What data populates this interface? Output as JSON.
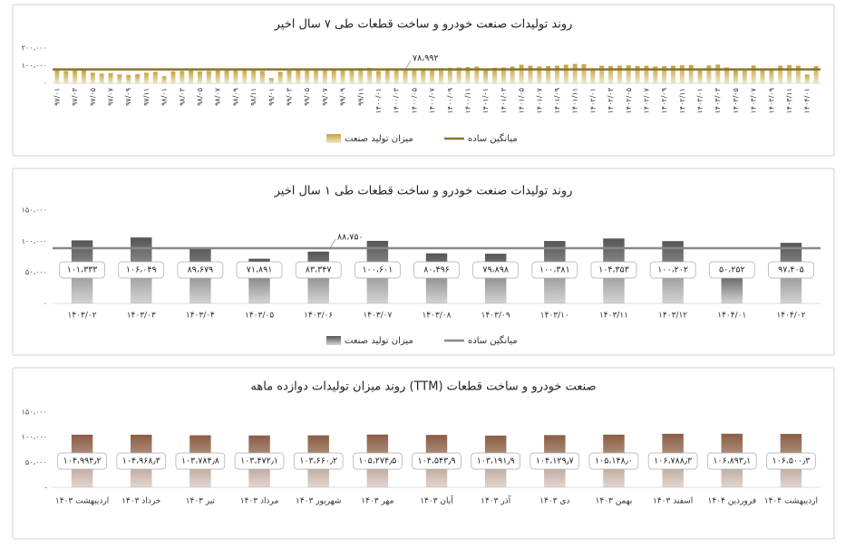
{
  "chart_data": [
    {
      "type": "bar",
      "title": "روند تولیدات صنعت خودرو و ساخت قطعات طی ۷ سال اخیر",
      "categories": [
        "۹۷/۰۱",
        null,
        "۹۷/۰۳",
        null,
        "۹۷/۰۵",
        null,
        "۹۷/۰۷",
        null,
        "۹۷/۰۹",
        null,
        "۹۷/۱۱",
        null,
        "۹۸/۰۱",
        null,
        "۹۸/۰۳",
        null,
        "۹۸/۰۵",
        null,
        "۹۸/۰۷",
        null,
        "۹۸/۰۹",
        null,
        "۹۸/۱۱",
        null,
        "۹۹/۰۱",
        null,
        "۹۹/۰۳",
        null,
        "۹۹/۰۵",
        null,
        "۹۹/۰۷",
        null,
        "۹۹/۰۹",
        null,
        "۹۹/۱۱",
        null,
        "۱۴۰۰/۰۱",
        null,
        "۱۴۰۰/۰۳",
        null,
        "۱۴۰۰/۰۵",
        null,
        "۱۴۰۰/۰۷",
        null,
        "۱۴۰۰/۰۹",
        null,
        "۱۴۰۰/۱۱",
        null,
        "۱۴۰۱/۰۱",
        null,
        "۱۴۰۱/۰۳",
        null,
        "۱۴۰۱/۰۵",
        null,
        "۱۴۰۱/۰۷",
        null,
        "۱۴۰۱/۰۹",
        null,
        "۱۴۰۱/۱۱",
        null,
        "۱۴۰۲/۰۱",
        null,
        "۱۴۰۲/۰۳",
        null,
        "۱۴۰۲/۰۵",
        null,
        "۱۴۰۲/۰۷",
        null,
        "۱۴۰۲/۰۹",
        null,
        "۱۴۰۲/۱۱",
        null,
        "۱۴۰۳/۰۱",
        null,
        "۱۴۰۳/۰۳",
        null,
        "۱۴۰۳/۰۵",
        null,
        "۱۴۰۳/۰۷",
        null,
        "۱۴۰۳/۰۹",
        null,
        "۱۴۰۳/۱۱",
        null,
        "۱۴۰۴/۰۱",
        null
      ],
      "series": [
        {
          "name": "میزان تولید صنعت",
          "color": "#c4a23a",
          "values": [
            76000,
            70000,
            72000,
            74000,
            60000,
            55000,
            58000,
            50000,
            48000,
            52000,
            60000,
            65000,
            40000,
            68000,
            70000,
            72000,
            68000,
            70000,
            72000,
            75000,
            78000,
            82000,
            80000,
            70000,
            30000,
            65000,
            72000,
            78000,
            80000,
            82000,
            85000,
            82000,
            80000,
            84000,
            86000,
            88000,
            70000,
            80000,
            84000,
            85000,
            83000,
            80000,
            82000,
            86000,
            88000,
            90000,
            92000,
            95000,
            75000,
            88000,
            90000,
            95000,
            105000,
            100000,
            95000,
            98000,
            100000,
            105000,
            110000,
            108000,
            85000,
            100000,
            98000,
            100000,
            102000,
            98000,
            100000,
            95000,
            97000,
            100000,
            102000,
            104000,
            80000,
            101000,
            106000,
            90000,
            72000,
            83000,
            101000,
            80000,
            80000,
            100000,
            104000,
            100000,
            50000,
            97000
          ]
        }
      ],
      "average": {
        "name": "میانگین ساده",
        "value": 78992,
        "label": "۷۸،۹۹۲",
        "color": "#8a7430"
      },
      "ylim": [
        0,
        200000
      ],
      "yticks": [
        {
          "value": 0,
          "label": "۰"
        },
        {
          "value": 100000,
          "label": "۱۰۰،۰۰۰"
        },
        {
          "value": 200000,
          "label": "۲۰۰،۰۰۰"
        }
      ]
    },
    {
      "type": "bar",
      "title": "روند تولیدات صنعت خودرو و ساخت قطعات طی ۱ سال اخیر",
      "categories": [
        "۱۴۰۳/۰۲",
        "۱۴۰۳/۰۳",
        "۱۴۰۳/۰۴",
        "۱۴۰۳/۰۵",
        "۱۴۰۳/۰۶",
        "۱۴۰۳/۰۷",
        "۱۴۰۳/۰۸",
        "۱۴۰۳/۰۹",
        "۱۴۰۳/۱۰",
        "۱۴۰۳/۱۱",
        "۱۴۰۳/۱۲",
        "۱۴۰۴/۰۱",
        "۱۴۰۴/۰۲"
      ],
      "series": [
        {
          "name": "میزان تولید صنعت",
          "color": "#555555",
          "values": [
            101333,
            106049,
            89679,
            71891,
            83347,
            100601,
            80496,
            79898,
            100381,
            104353,
            100202,
            50252,
            97405
          ],
          "value_labels": [
            "۱۰۱،۳۳۳",
            "۱۰۶،۰۴۹",
            "۸۹،۶۷۹",
            "۷۱،۸۹۱",
            "۸۳،۳۴۷",
            "۱۰۰،۶۰۱",
            "۸۰،۴۹۶",
            "۷۹،۸۹۸",
            "۱۰۰،۳۸۱",
            "۱۰۴،۳۵۳",
            "۱۰۰،۲۰۲",
            "۵۰،۲۵۲",
            "۹۷،۴۰۵"
          ]
        }
      ],
      "average": {
        "name": "میانگین ساده",
        "value": 88750,
        "label": "۸۸،۷۵۰",
        "color": "#888888"
      },
      "ylim": [
        0,
        150000
      ],
      "yticks": [
        {
          "value": 0,
          "label": "۰"
        },
        {
          "value": 50000,
          "label": "۵۰،۰۰۰"
        },
        {
          "value": 100000,
          "label": "۱۰۰،۰۰۰"
        },
        {
          "value": 150000,
          "label": "۱۵۰،۰۰۰"
        }
      ]
    },
    {
      "type": "bar",
      "title": "روند میزان تولیدات دوازده ماهه (TTM) صنعت خودرو و ساخت قطعات",
      "categories": [
        "اردیبهشت ۱۴۰۳",
        "خرداد ۱۴۰۳",
        "تیر ۱۴۰۳",
        "مرداد ۱۴۰۳",
        "شهریور ۱۴۰۳",
        "مهر ۱۴۰۳",
        "آبان ۱۴۰۳",
        "آذر ۱۴۰۳",
        "دی ۱۴۰۳",
        "بهمن ۱۴۰۳",
        "اسفند ۱۴۰۳",
        "فروردین ۱۴۰۴",
        "اردیبهشت ۱۴۰۴"
      ],
      "series": [
        {
          "color": "#8b5e45",
          "values": [
            104994.2,
            104968.3,
            103784.8,
            103472.1,
            103660.2,
            105274.5,
            104543.9,
            103191.9,
            104129.7,
            105148.0,
            106788.3,
            106893.1,
            106500.3
          ],
          "value_labels": [
            "۱۰۴،۹۹۴٫۲",
            "۱۰۴،۹۶۸٫۳",
            "۱۰۳،۷۸۴٫۸",
            "۱۰۳،۴۷۲٫۱",
            "۱۰۳،۶۶۰٫۲",
            "۱۰۵،۲۷۴٫۵",
            "۱۰۴،۵۴۳٫۹",
            "۱۰۳،۱۹۱٫۹",
            "۱۰۴،۱۲۹٫۷",
            "۱۰۵،۱۴۸٫۰",
            "۱۰۶،۷۸۸٫۳",
            "۱۰۶،۸۹۳٫۱",
            "۱۰۶،۵۰۰٫۳"
          ]
        }
      ],
      "ylim": [
        0,
        150000
      ],
      "yticks": [
        {
          "value": 0,
          "label": "-"
        },
        {
          "value": 50000,
          "label": "۵۰،۰۰۰"
        },
        {
          "value": 100000,
          "label": "۱۰۰،۰۰۰"
        },
        {
          "value": 150000,
          "label": "۱۵۰،۰۰۰"
        }
      ]
    }
  ]
}
